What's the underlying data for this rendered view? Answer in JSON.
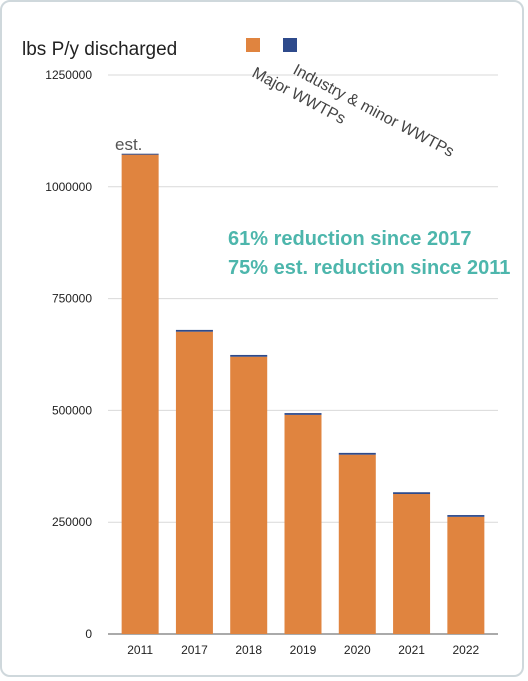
{
  "chart_data": {
    "type": "bar",
    "title": "",
    "ylabel": "lbs P/y discharged",
    "xlabel": "",
    "ylim": [
      0,
      1250000
    ],
    "yticks": [
      0,
      250000,
      500000,
      750000,
      1000000,
      1250000
    ],
    "ytick_labels": [
      "0",
      "250000",
      "500000",
      "750000",
      "1000000",
      "1250000"
    ],
    "categories": [
      "2011",
      "2017",
      "2018",
      "2019",
      "2020",
      "2021",
      "2022"
    ],
    "series": [
      {
        "name": "Major WWTPs",
        "color": "#e0843f",
        "values": [
          1072000,
          676000,
          620000,
          490000,
          401000,
          313000,
          262000
        ]
      },
      {
        "name": "Industry & minor WWTPs",
        "color": "#2e4a8b",
        "values": [
          2000,
          4000,
          4000,
          4000,
          4000,
          4000,
          4000
        ]
      }
    ],
    "legend_position": "top",
    "grid": true,
    "annotations": [
      {
        "label": "est.",
        "category": "2011"
      }
    ],
    "callouts": [
      "61% reduction since 2017",
      "75% est. reduction since 2011"
    ]
  }
}
